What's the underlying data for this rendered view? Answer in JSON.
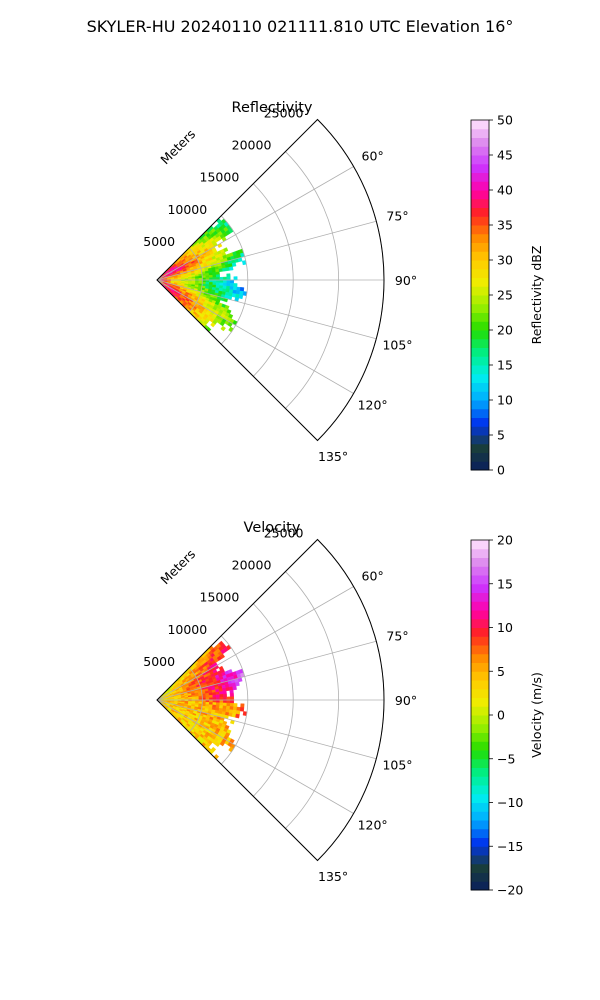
{
  "figure_title": "SKYLER-HU  20240110  021111.810 UTC Elevation 16°",
  "chart_data": [
    {
      "type": "polar-sector",
      "title": "Reflectivity",
      "radial_label": "Meters",
      "r_ticks": [
        5000,
        10000,
        15000,
        20000,
        25000
      ],
      "r_tick_labels": [
        "5000",
        "10000",
        "15000",
        "20000",
        "25000"
      ],
      "r_max": 25000,
      "theta_range_deg": [
        45,
        135
      ],
      "theta_direction": "clockwise",
      "theta_zero": "N",
      "theta_ticks": [
        60,
        75,
        90,
        105,
        120,
        135
      ],
      "theta_tick_labels": [
        "60°",
        "75°",
        "90°",
        "105°",
        "120°",
        "135°"
      ],
      "grid": true,
      "data_extent_m": 10000,
      "colorbar": {
        "label": "Reflectivity dBZ",
        "min": 0,
        "max": 50,
        "ticks": [
          0,
          5,
          10,
          15,
          20,
          25,
          30,
          35,
          40,
          45,
          50
        ],
        "tick_labels": [
          "0",
          "5",
          "10",
          "15",
          "20",
          "25",
          "30",
          "35",
          "40",
          "45",
          "50"
        ],
        "stops": [
          "#0a1f5c",
          "#1a3f3a",
          "#0033ee",
          "#00aaff",
          "#00eeee",
          "#00ee88",
          "#22dd00",
          "#99ee00",
          "#eeee00",
          "#ffcc00",
          "#ff8800",
          "#ff2222",
          "#ff00aa",
          "#cc33ff",
          "#dd88ee",
          "#ffe6ff"
        ]
      }
    },
    {
      "type": "polar-sector",
      "title": "Velocity",
      "radial_label": "Meters",
      "r_ticks": [
        5000,
        10000,
        15000,
        20000,
        25000
      ],
      "r_tick_labels": [
        "5000",
        "10000",
        "15000",
        "20000",
        "25000"
      ],
      "r_max": 25000,
      "theta_range_deg": [
        45,
        135
      ],
      "theta_direction": "clockwise",
      "theta_zero": "N",
      "theta_ticks": [
        60,
        75,
        90,
        105,
        120,
        135
      ],
      "theta_tick_labels": [
        "60°",
        "75°",
        "90°",
        "105°",
        "120°",
        "135°"
      ],
      "grid": true,
      "data_extent_m": 10000,
      "colorbar": {
        "label": "Velocity (m/s)",
        "min": -20,
        "max": 20,
        "ticks": [
          -20,
          -15,
          -10,
          -5,
          0,
          5,
          10,
          15,
          20
        ],
        "tick_labels": [
          "−20",
          "−15",
          "−10",
          "−5",
          "0",
          "5",
          "10",
          "15",
          "20"
        ],
        "stops": [
          "#0a1f5c",
          "#1a3f3a",
          "#0033ee",
          "#00aaff",
          "#00eeee",
          "#00ee88",
          "#22dd00",
          "#99ee00",
          "#eeee00",
          "#ffcc00",
          "#ff8800",
          "#ff2222",
          "#ff00aa",
          "#cc33ff",
          "#dd88ee",
          "#ffe6ff"
        ]
      }
    }
  ]
}
